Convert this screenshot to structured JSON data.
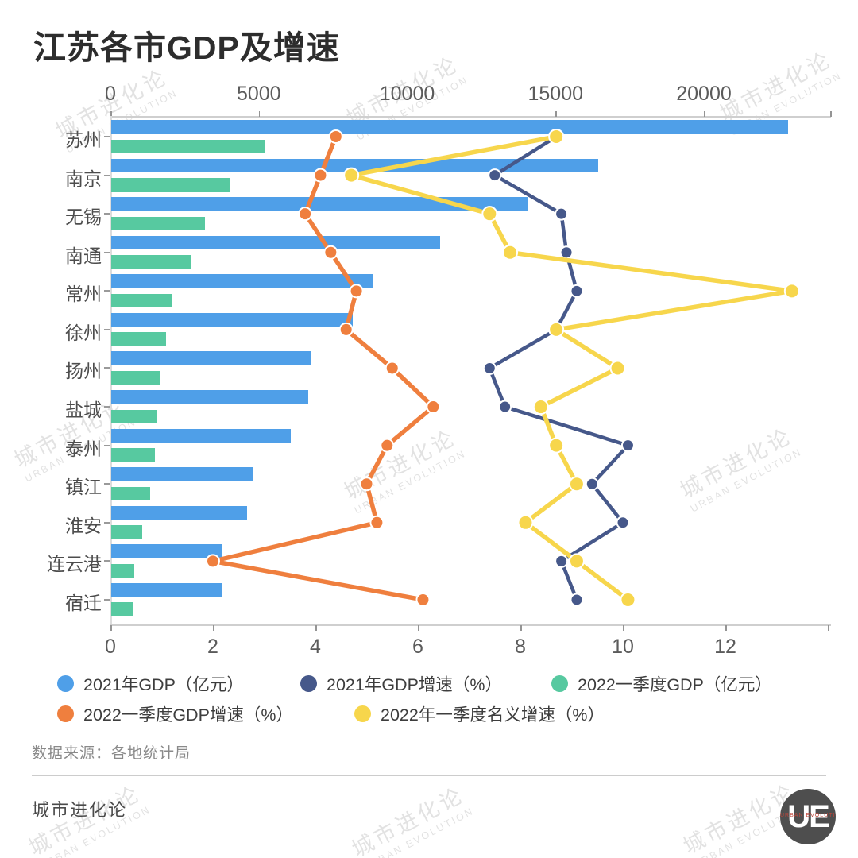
{
  "title": "江苏各市GDP及增速",
  "source": "数据来源：各地统计局",
  "footer_brand": "城市进化论",
  "watermark": {
    "line1": "城市进化论",
    "line2": "URBAN EVOLUTION"
  },
  "logo": {
    "text": "UE",
    "subtext": "URBAN EVOLUTION"
  },
  "colors": {
    "gdp2021_bar": "#4f9fe8",
    "gdpQ1_bar": "#57c9a0",
    "growth2021_line": "#46588a",
    "growthQ1_line": "#ef7f3e",
    "nominalQ1_line": "#f7d64c",
    "axis": "#cfcfcf"
  },
  "legend": {
    "items": [
      {
        "label": "2021年GDP（亿元）",
        "color": "#4f9fe8"
      },
      {
        "label": "2021年GDP增速（%）",
        "color": "#46588a"
      },
      {
        "label": "2022一季度GDP（亿元）",
        "color": "#57c9a0"
      },
      {
        "label": "2022一季度GDP增速（%）",
        "color": "#ef7f3e"
      },
      {
        "label": "2022年一季度名义增速（%）",
        "color": "#f7d64c"
      }
    ]
  },
  "chart_data": {
    "type": "bar",
    "subtype": "horizontal bars with overlaid line series on a secondary axis",
    "title": "江苏各市GDP及增速",
    "categories": [
      "苏州",
      "南京",
      "无锡",
      "南通",
      "常州",
      "徐州",
      "扬州",
      "盐城",
      "泰州",
      "镇江",
      "淮安",
      "连云港",
      "宿迁"
    ],
    "series": [
      {
        "name": "2021年GDP（亿元）",
        "type": "bar",
        "axis": "top",
        "color": "#4f9fe8",
        "values": [
          22718,
          16355,
          14003,
          11027,
          8808,
          8117,
          6696,
          6617,
          6025,
          4763,
          4550,
          3728,
          3719
        ]
      },
      {
        "name": "2022一季度GDP（亿元）",
        "type": "bar",
        "axis": "top",
        "color": "#57c9a0",
        "values": [
          5182,
          3982,
          3150,
          2654,
          2051,
          1850,
          1631,
          1525,
          1473,
          1295,
          1040,
          770,
          750
        ]
      },
      {
        "name": "2021年GDP增速（%）",
        "type": "line",
        "axis": "bottom",
        "color": "#46588a",
        "values": [
          8.7,
          7.5,
          8.8,
          8.9,
          9.1,
          8.7,
          7.4,
          7.7,
          10.1,
          9.4,
          10.0,
          8.8,
          9.1
        ]
      },
      {
        "name": "2022一季度GDP增速（%）",
        "type": "line",
        "axis": "bottom",
        "color": "#ef7f3e",
        "values": [
          4.4,
          4.1,
          3.8,
          4.3,
          4.8,
          4.6,
          5.5,
          6.3,
          5.4,
          5.0,
          5.2,
          2.0,
          6.1
        ]
      },
      {
        "name": "2022年一季度名义增速（%）",
        "type": "line",
        "axis": "bottom",
        "color": "#f7d64c",
        "values": [
          8.7,
          4.7,
          7.4,
          7.8,
          13.3,
          8.7,
          9.9,
          8.4,
          8.7,
          9.1,
          8.1,
          9.1,
          10.1
        ]
      }
    ],
    "top_axis": {
      "ticks": [
        0,
        5000,
        10000,
        15000,
        20000
      ],
      "range": [
        0,
        24250
      ],
      "unit": "亿元"
    },
    "bottom_axis": {
      "ticks": [
        0,
        2,
        4,
        6,
        8,
        10,
        12
      ],
      "range": [
        0,
        14.05
      ],
      "unit": "%"
    },
    "grid": false,
    "legend_position": "bottom"
  }
}
